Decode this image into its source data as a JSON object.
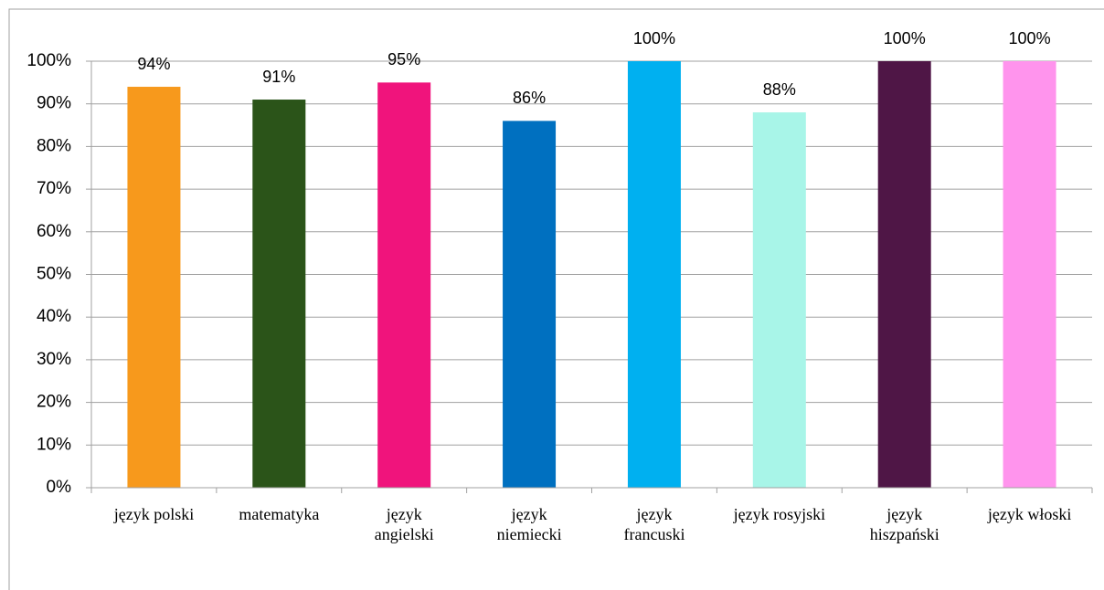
{
  "chart_data": {
    "type": "bar",
    "categories": [
      "język polski",
      "matematyka",
      "język\nangielski",
      "język\nniemiecki",
      "język\nfrancuski",
      "język rosyjski",
      "język\nhiszpański",
      "język włoski"
    ],
    "values": [
      94,
      91,
      95,
      86,
      100,
      88,
      100,
      100
    ],
    "value_labels": [
      "94%",
      "91%",
      "95%",
      "86%",
      "100%",
      "88%",
      "100%",
      "100%"
    ],
    "colors": [
      "#f7991c",
      "#2b5419",
      "#f0147c",
      "#0070c0",
      "#00b0f0",
      "#a8f5e8",
      "#4f1646",
      "#ff94ed"
    ],
    "ylim": [
      0,
      100
    ],
    "yticks": [
      {
        "value": 0,
        "label": "0%"
      },
      {
        "value": 10,
        "label": "10%"
      },
      {
        "value": 20,
        "label": "20%"
      },
      {
        "value": 30,
        "label": "30%"
      },
      {
        "value": 40,
        "label": "40%"
      },
      {
        "value": 50,
        "label": "50%"
      },
      {
        "value": 60,
        "label": "60%"
      },
      {
        "value": 70,
        "label": "70%"
      },
      {
        "value": 80,
        "label": "80%"
      },
      {
        "value": 90,
        "label": "90%"
      },
      {
        "value": 100,
        "label": "100%"
      }
    ],
    "grid": true
  }
}
